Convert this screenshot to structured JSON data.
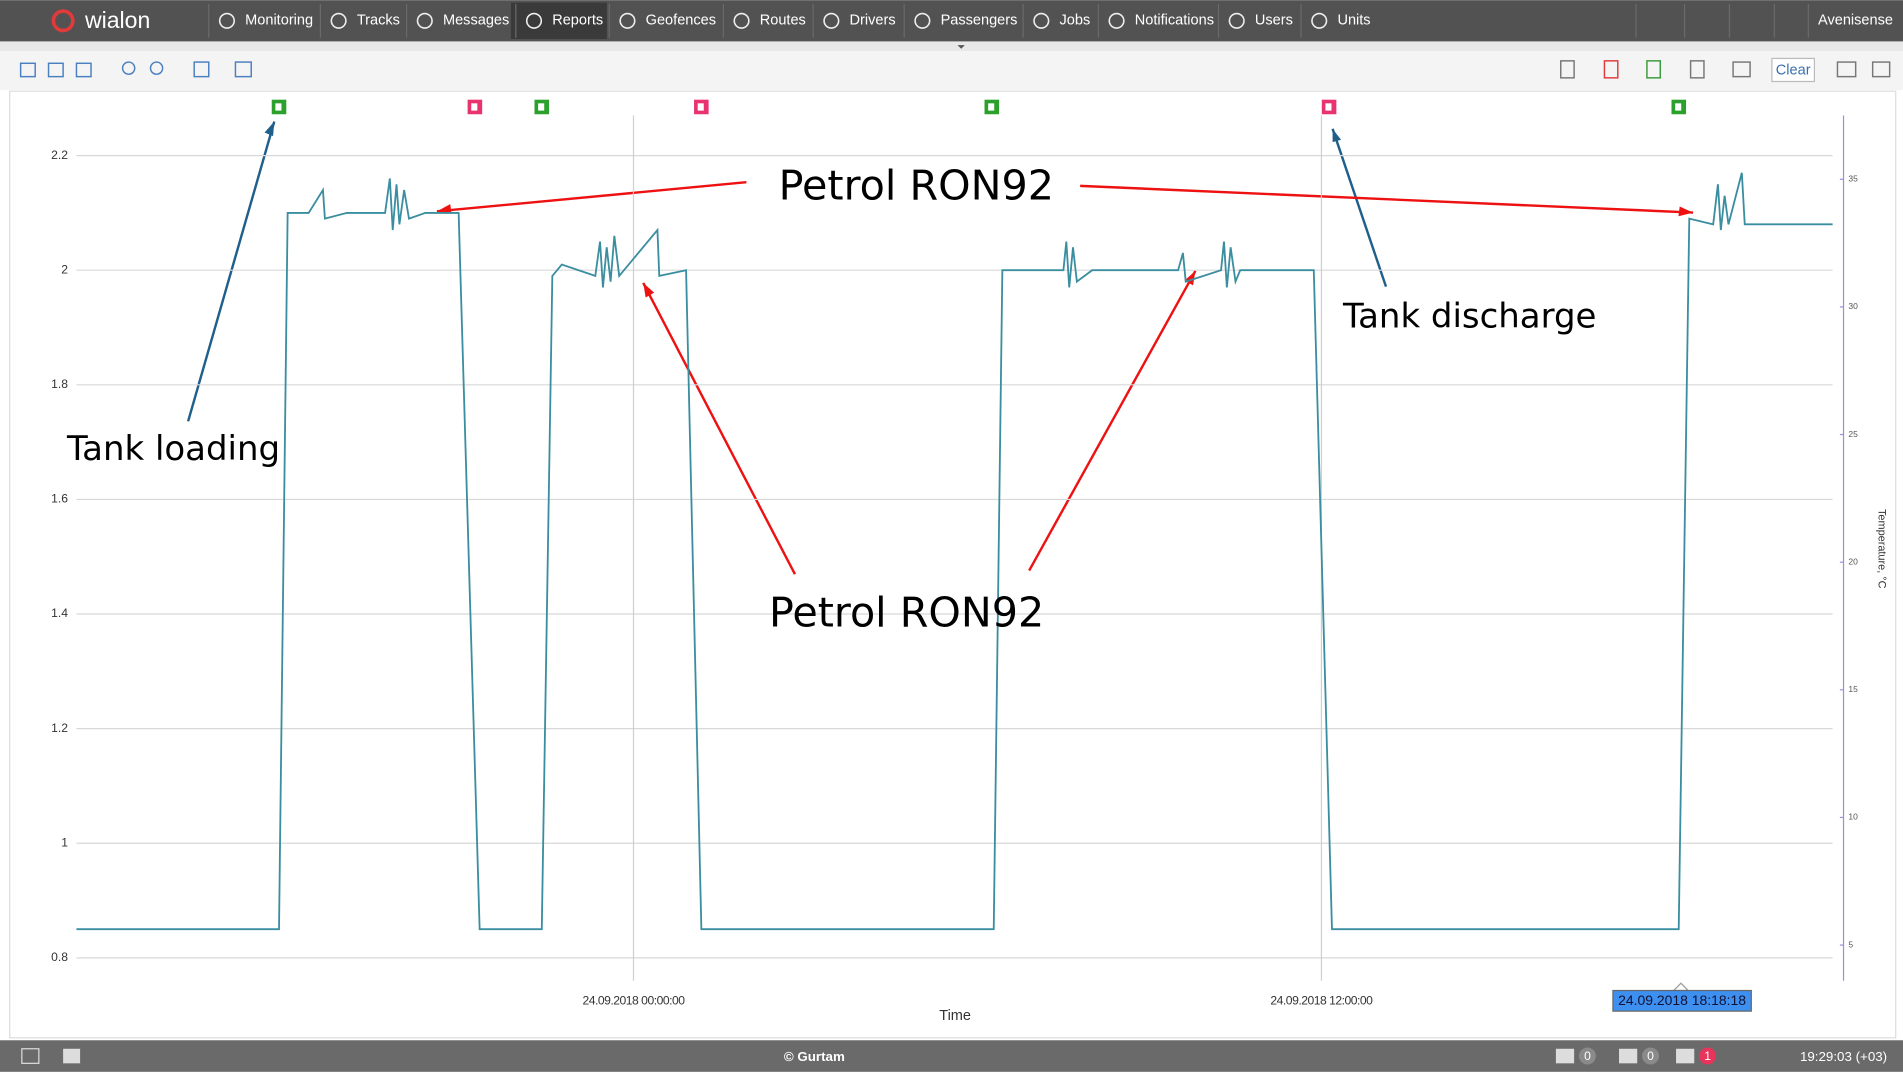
{
  "nav": {
    "logo": "wialon",
    "items": [
      "Monitoring",
      "Tracks",
      "Messages",
      "Reports",
      "Geofences",
      "Routes",
      "Drivers",
      "Passengers",
      "Jobs",
      "Notifications",
      "Users",
      "Units"
    ],
    "user": "Avenisense"
  },
  "toolbar": {
    "clear": "Clear"
  },
  "chart_data": {
    "type": "line",
    "x_label": "Time",
    "y2_label": "Temperature, °C",
    "color": "#3a8ea0",
    "cursor_label": "24.09.2018 18:18:18",
    "annotations": [
      "Petrol RON92",
      "Petrol RON92",
      "Tank loading",
      "Tank discharge"
    ],
    "xlim": [
      "2018-09-23T14:17:00",
      "2018-09-24T20:55:00"
    ],
    "xticks": [
      {
        "value": "2018-09-24T00:00:00",
        "label": "24.09.2018 00:00:00"
      },
      {
        "value": "2018-09-24T12:00:00",
        "label": "24.09.2018 12:00:00"
      }
    ],
    "ylim": [
      0.76,
      2.27
    ],
    "yticks": [
      0.8,
      1,
      1.2,
      1.4,
      1.6,
      1.8,
      2,
      2.2
    ],
    "y2lim": [
      3.6,
      37.5
    ],
    "y2ticks": [
      5,
      10,
      15,
      20,
      25,
      30,
      35
    ],
    "events": [
      {
        "x": "2018-09-23T17:49:00",
        "color": "#2ca02c"
      },
      {
        "x": "2018-09-23T21:14:00",
        "color": "#e8336e"
      },
      {
        "x": "2018-09-23T22:24:00",
        "color": "#2ca02c"
      },
      {
        "x": "2018-09-24T01:11:00",
        "color": "#e8336e"
      },
      {
        "x": "2018-09-24T06:15:00",
        "color": "#2ca02c"
      },
      {
        "x": "2018-09-24T12:08:00",
        "color": "#e8336e"
      },
      {
        "x": "2018-09-24T18:14:00",
        "color": "#2ca02c"
      }
    ],
    "x": [
      "2018-09-23T14:17:00",
      "2018-09-23T17:49:00",
      "2018-09-23T17:58:00",
      "2018-09-23T18:20:00",
      "2018-09-23T18:35:00",
      "2018-09-23T18:37:00",
      "2018-09-23T19:00:00",
      "2018-09-23T19:40:00",
      "2018-09-23T19:45:00",
      "2018-09-23T19:48:00",
      "2018-09-23T19:52:00",
      "2018-09-23T19:55:00",
      "2018-09-23T20:00:00",
      "2018-09-23T20:05:00",
      "2018-09-23T20:22:00",
      "2018-09-23T20:57:00",
      "2018-09-23T21:19:00",
      "2018-09-23T22:24:00",
      "2018-09-23T22:35:00",
      "2018-09-23T22:45:00",
      "2018-09-23T23:20:00",
      "2018-09-23T23:25:00",
      "2018-09-23T23:28:00",
      "2018-09-23T23:32:00",
      "2018-09-23T23:36:00",
      "2018-09-23T23:40:00",
      "2018-09-23T23:45:00",
      "2018-09-24T00:25:00",
      "2018-09-24T00:27:00",
      "2018-09-24T00:55:00",
      "2018-09-24T01:11:00",
      "2018-09-24T06:17:00",
      "2018-09-24T06:26:00",
      "2018-09-24T07:30:00",
      "2018-09-24T07:33:00",
      "2018-09-24T07:36:00",
      "2018-09-24T07:40:00",
      "2018-09-24T07:44:00",
      "2018-09-24T08:00:00",
      "2018-09-24T09:30:00",
      "2018-09-24T09:35:00",
      "2018-09-24T09:38:00",
      "2018-09-24T10:15:00",
      "2018-09-24T10:18:00",
      "2018-09-24T10:21:00",
      "2018-09-24T10:25:00",
      "2018-09-24T10:30:00",
      "2018-09-24T10:35:00",
      "2018-09-24T11:52:00",
      "2018-09-24T12:11:00",
      "2018-09-24T18:14:00",
      "2018-09-24T18:25:00",
      "2018-09-24T18:50:00",
      "2018-09-24T18:55:00",
      "2018-09-24T18:58:00",
      "2018-09-24T19:02:00",
      "2018-09-24T19:06:00",
      "2018-09-24T19:20:00",
      "2018-09-24T19:23:00",
      "2018-09-24T20:55:00"
    ],
    "values": [
      0.85,
      0.85,
      2.1,
      2.1,
      2.14,
      2.09,
      2.1,
      2.1,
      2.16,
      2.07,
      2.15,
      2.08,
      2.14,
      2.09,
      2.1,
      2.1,
      0.85,
      0.85,
      1.99,
      2.01,
      1.99,
      2.05,
      1.97,
      2.04,
      1.98,
      2.06,
      1.99,
      2.07,
      1.99,
      2,
      0.85,
      0.85,
      2,
      2,
      2.05,
      1.97,
      2.04,
      1.98,
      2,
      2,
      2.03,
      1.98,
      2,
      2.05,
      1.97,
      2.04,
      1.98,
      2,
      2,
      0.85,
      0.85,
      2.09,
      2.08,
      2.15,
      2.07,
      2.13,
      2.08,
      2.17,
      2.08,
      2.08
    ]
  },
  "footer": {
    "copyright": "© Gurtam",
    "counters": [
      0,
      0,
      1
    ],
    "clock": "19:29:03 (+03)"
  }
}
